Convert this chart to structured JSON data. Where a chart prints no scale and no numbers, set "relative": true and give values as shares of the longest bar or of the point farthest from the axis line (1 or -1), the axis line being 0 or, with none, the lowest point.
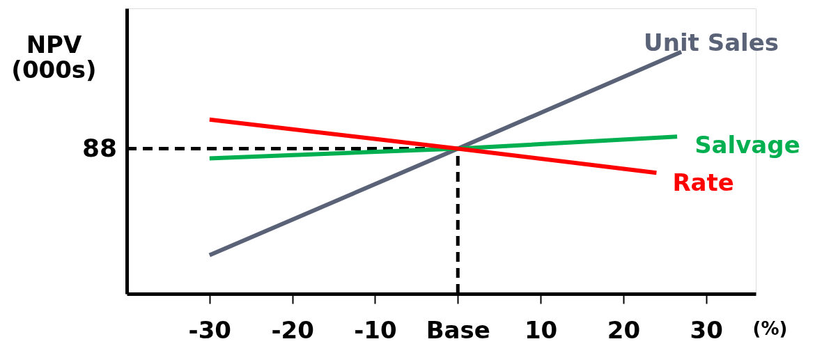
{
  "chart_data": {
    "type": "line",
    "relative": true,
    "ylabel": "NPV (000s)",
    "xlabel": "(%)",
    "xlim": [
      -40,
      36
    ],
    "annotations": [
      "88"
    ],
    "xticks": [
      -30,
      -20,
      -10,
      {
        "value": 0,
        "label": "Base"
      },
      10,
      20,
      30
    ],
    "series": [
      {
        "name": "Unit Sales",
        "color": "#5a6278",
        "x": [
          -30,
          0,
          27
        ],
        "values": [
          0.16,
          0.6,
          1.0
        ]
      },
      {
        "name": "Salvage",
        "color": "#00b050",
        "x": [
          -30,
          0,
          26.5
        ],
        "values": [
          0.56,
          0.6,
          0.65
        ]
      },
      {
        "name": "Rate",
        "color": "#ff0000",
        "x": [
          -30,
          0,
          24
        ],
        "values": [
          0.72,
          0.6,
          0.5
        ]
      }
    ],
    "ref_lines": [
      {
        "axis": "y",
        "value": 0.6,
        "color": "#000000",
        "line_style": "dashed"
      },
      {
        "axis": "x",
        "value": 0,
        "color": "#000000",
        "line_style": "dashed"
      }
    ],
    "legend": false,
    "grid": false,
    "marker": "none",
    "line_style": "solid"
  }
}
